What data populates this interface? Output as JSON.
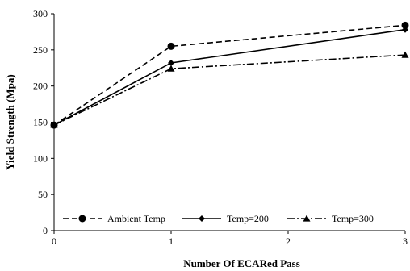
{
  "chart_data": {
    "type": "line",
    "xlabel": "Number Of ECARed Pass",
    "ylabel": "Yield Strength (Mpa)",
    "x": [
      0,
      1,
      3
    ],
    "xticks": [
      0,
      1,
      2,
      3
    ],
    "xlim": [
      0,
      3
    ],
    "yticks": [
      0,
      50,
      100,
      150,
      200,
      250,
      300
    ],
    "ylim": [
      0,
      300
    ],
    "grid": false,
    "legend_position": "bottom",
    "series": [
      {
        "name": "Ambient Temp",
        "values": [
          146,
          255,
          284
        ],
        "marker": "circle",
        "dash": "dashed",
        "color": "#000000"
      },
      {
        "name": "Temp=200",
        "values": [
          146,
          232,
          278
        ],
        "marker": "diamond",
        "dash": "solid",
        "color": "#000000"
      },
      {
        "name": "Temp=300",
        "values": [
          146,
          224,
          243
        ],
        "marker": "triangle",
        "dash": "dashdot",
        "color": "#000000"
      }
    ]
  }
}
